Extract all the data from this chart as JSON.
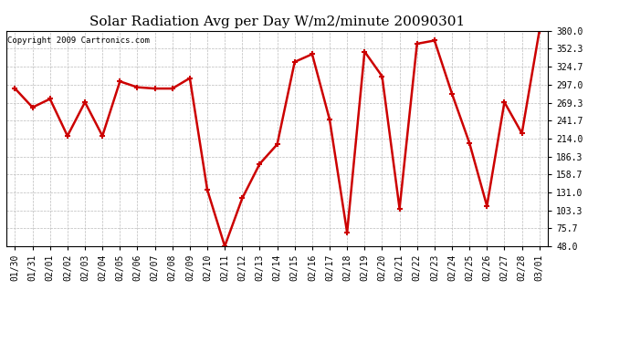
{
  "title": "Solar Radiation Avg per Day W/m2/minute 20090301",
  "copyright": "Copyright 2009 Cartronics.com",
  "dates": [
    "01/30",
    "01/31",
    "02/01",
    "02/02",
    "02/03",
    "02/04",
    "02/05",
    "02/06",
    "02/07",
    "02/08",
    "02/09",
    "02/10",
    "02/11",
    "02/12",
    "02/13",
    "02/14",
    "02/15",
    "02/16",
    "02/17",
    "02/18",
    "02/19",
    "02/20",
    "02/21",
    "02/22",
    "02/23",
    "02/24",
    "02/25",
    "02/26",
    "02/27",
    "02/28",
    "03/01"
  ],
  "values": [
    291.0,
    262.0,
    275.0,
    218.0,
    270.0,
    218.0,
    302.0,
    293.0,
    291.0,
    291.0,
    307.0,
    135.0,
    48.0,
    122.0,
    175.0,
    205.0,
    332.0,
    344.0,
    243.0,
    69.0,
    348.0,
    310.0,
    106.0,
    360.0,
    365.0,
    283.0,
    207.0,
    110.0,
    270.0,
    222.0,
    380.0
  ],
  "line_color": "#cc0000",
  "marker": "+",
  "markersize": 5,
  "markeredgewidth": 1.5,
  "linewidth": 1.8,
  "ylim": [
    48.0,
    380.0
  ],
  "yticks": [
    48.0,
    75.7,
    103.3,
    131.0,
    158.7,
    186.3,
    214.0,
    241.7,
    269.3,
    297.0,
    324.7,
    352.3,
    380.0
  ],
  "bg_color": "#ffffff",
  "grid_color": "#bbbbbb",
  "title_fontsize": 11,
  "copyright_fontsize": 6.5,
  "tick_fontsize": 7,
  "fig_width": 6.9,
  "fig_height": 3.75,
  "dpi": 100
}
